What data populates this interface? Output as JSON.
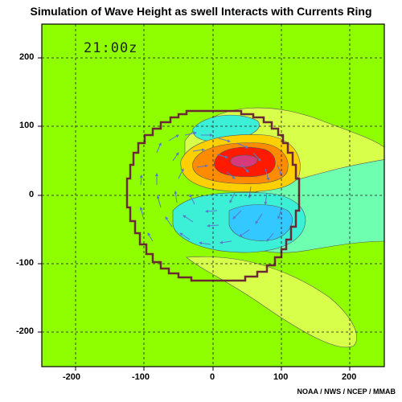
{
  "title": "Simulation of Wave Height as swell Interacts with Currents Ring",
  "timestamp": "21:00z",
  "credit": "NOAA / NWS / NCEP / MMAB",
  "x_ticks": [
    "-200",
    "-100",
    "0",
    "100",
    "200"
  ],
  "y_ticks": [
    "200",
    "100",
    "0",
    "-100",
    "-200"
  ],
  "colors": {
    "background_field": "#8fff00",
    "ring_outline": "#6b2a33",
    "vectors": "#5a78c8",
    "grid": "#1a1a1a",
    "high": "#ff1a00",
    "low": "#33c8ff"
  },
  "chart_data": {
    "type": "heatmap",
    "xlim": [
      -250,
      250
    ],
    "ylim": [
      -250,
      250
    ],
    "grid": true,
    "ring_center": [
      0,
      0
    ],
    "ring_radius": 125
  }
}
